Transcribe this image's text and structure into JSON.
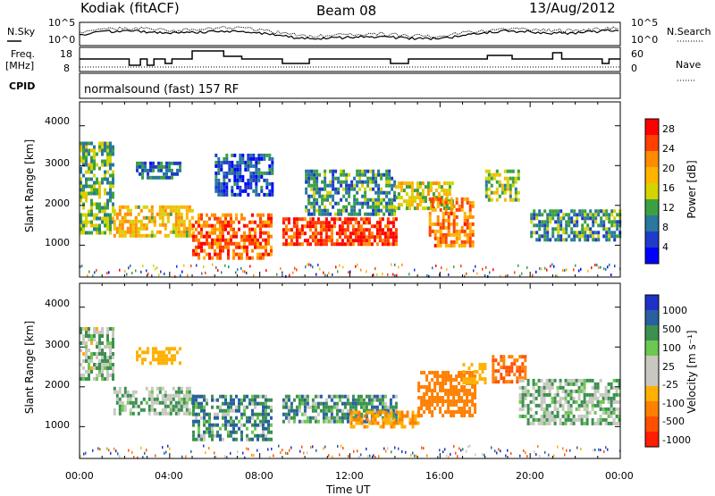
{
  "header": {
    "station": "Kodiak (fitACF)",
    "beam": "Beam 08",
    "date": "13/Aug/2012"
  },
  "side_labels": {
    "nsky": "N.Sky",
    "nsearch": "N.Search",
    "freq": "Freq.",
    "freq_unit": "[MHz]",
    "nave": "Nave",
    "cpid": "CPID"
  },
  "noise_axis": {
    "top": "10^5",
    "bottom": "10^0"
  },
  "freq_axis": {
    "top": "18",
    "bottom": "8"
  },
  "nave_axis": {
    "top": "60",
    "bottom": "0"
  },
  "cpid_text": "normalsound (fast) 157 RF",
  "x_axis": {
    "label": "Time UT",
    "ticks": [
      "00:00",
      "04:00",
      "08:00",
      "12:00",
      "16:00",
      "20:00",
      "00:00"
    ]
  },
  "panels": {
    "power": {
      "ylabel": "Slant Range [km]",
      "yticks": [
        "4000",
        "3000",
        "2000",
        "1000"
      ],
      "colorbar_label": "Power [dB]",
      "colorbar_ticks": [
        "28",
        "24",
        "20",
        "16",
        "12",
        "8",
        "4"
      ],
      "colorbar_colors": [
        "#ff0000",
        "#ff4000",
        "#ff8c00",
        "#ffb400",
        "#d4d400",
        "#3ca040",
        "#2878a0",
        "#1e3cc8",
        "#0000ff"
      ]
    },
    "velocity": {
      "ylabel": "Slant Range [km]",
      "yticks": [
        "4000",
        "3000",
        "2000",
        "1000"
      ],
      "colorbar_label": "Velocity [m s⁻¹]",
      "colorbar_ticks": [
        "1000",
        "500",
        "100",
        "25",
        "-25",
        "-100",
        "-500",
        "-1000"
      ],
      "colorbar_colors": [
        "#1e32c8",
        "#2860a0",
        "#3c9050",
        "#6cc850",
        "#c8c8c0",
        "#c8c8c0",
        "#ffb000",
        "#ff8000",
        "#ff5000",
        "#ff1e00"
      ]
    }
  },
  "chart_data": [
    {
      "type": "heatmap",
      "title": "Power [dB]",
      "xlabel": "Time UT",
      "ylabel": "Slant Range [km]",
      "xlim": [
        0,
        24
      ],
      "ylim": [
        200,
        4600
      ],
      "clim": [
        0,
        30
      ],
      "regions": [
        {
          "t": [
            0.0,
            1.5
          ],
          "r": [
            1300,
            3600
          ],
          "level": 12
        },
        {
          "t": [
            1.5,
            5.0
          ],
          "r": [
            1200,
            2000
          ],
          "level": 18
        },
        {
          "t": [
            2.5,
            4.5
          ],
          "r": [
            2700,
            3100
          ],
          "level": 8
        },
        {
          "t": [
            5.0,
            8.5
          ],
          "r": [
            700,
            1800
          ],
          "level": 24
        },
        {
          "t": [
            6.0,
            8.5
          ],
          "r": [
            2300,
            3300
          ],
          "level": 6
        },
        {
          "t": [
            9.0,
            14.0
          ],
          "r": [
            1000,
            1700
          ],
          "level": 26
        },
        {
          "t": [
            10.0,
            14.0
          ],
          "r": [
            1800,
            2900
          ],
          "level": 10
        },
        {
          "t": [
            14.0,
            16.5
          ],
          "r": [
            1900,
            2600
          ],
          "level": 16
        },
        {
          "t": [
            15.5,
            17.5
          ],
          "r": [
            1000,
            2200
          ],
          "level": 22
        },
        {
          "t": [
            18.0,
            19.5
          ],
          "r": [
            2100,
            2900
          ],
          "level": 14
        },
        {
          "t": [
            20.0,
            24.0
          ],
          "r": [
            1100,
            1900
          ],
          "level": 10
        }
      ]
    },
    {
      "type": "heatmap",
      "title": "Velocity [m s⁻¹]",
      "xlabel": "Time UT",
      "ylabel": "Slant Range [km]",
      "xlim": [
        0,
        24
      ],
      "ylim": [
        200,
        4600
      ],
      "clim": [
        -1000,
        1000
      ],
      "regions": [
        {
          "t": [
            0.0,
            1.5
          ],
          "r": [
            2200,
            3500
          ],
          "level": -10
        },
        {
          "t": [
            1.5,
            5.0
          ],
          "r": [
            1300,
            2000
          ],
          "level": 0
        },
        {
          "t": [
            2.5,
            4.5
          ],
          "r": [
            2600,
            3000
          ],
          "level": -200
        },
        {
          "t": [
            5.0,
            8.5
          ],
          "r": [
            700,
            1800
          ],
          "level": 80
        },
        {
          "t": [
            9.0,
            14.0
          ],
          "r": [
            1100,
            1800
          ],
          "level": 60
        },
        {
          "t": [
            12.0,
            15.0
          ],
          "r": [
            1000,
            1400
          ],
          "level": -300
        },
        {
          "t": [
            15.0,
            17.5
          ],
          "r": [
            1300,
            2400
          ],
          "level": -400
        },
        {
          "t": [
            17.0,
            18.0
          ],
          "r": [
            2100,
            2600
          ],
          "level": -200
        },
        {
          "t": [
            18.3,
            19.8
          ],
          "r": [
            2100,
            2800
          ],
          "level": -500
        },
        {
          "t": [
            19.5,
            24.0
          ],
          "r": [
            1100,
            2200
          ],
          "level": 0
        }
      ]
    }
  ]
}
